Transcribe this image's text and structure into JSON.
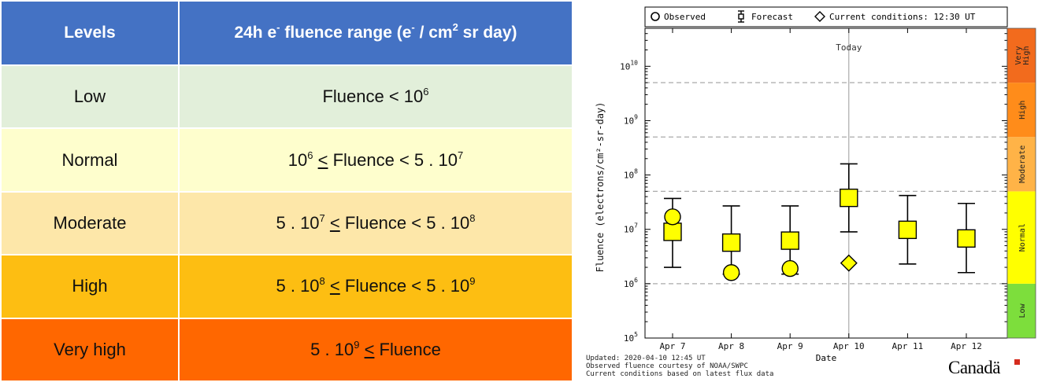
{
  "table": {
    "headers": {
      "levels": "Levels",
      "range_prefix": "24h e",
      "range_sup1": "-",
      "range_mid": " fluence range (e",
      "range_sup2": "-",
      "range_mid2": " / cm",
      "range_sup3": "2",
      "range_end": " sr day)"
    },
    "rows": [
      {
        "level": "Low",
        "color": "#e2efda",
        "r1": "Fluence < 10",
        "s1": "6",
        "r2": "",
        "u": "",
        "r3": "",
        "s2": ""
      },
      {
        "level": "Normal",
        "color": "#fefecd",
        "r1": "10",
        "s1": "6",
        "r2": " ",
        "u": "<",
        "r3": " Fluence < 5 . 10",
        "s2": "7"
      },
      {
        "level": "Moderate",
        "color": "#fde7a9",
        "r1": "5 . 10",
        "s1": "7",
        "r2": " ",
        "u": "<",
        "r3": " Fluence < 5 . 10",
        "s2": "8"
      },
      {
        "level": "High",
        "color": "#fdbe12",
        "r1": "5 . 10",
        "s1": "8",
        "r2": " ",
        "u": "<",
        "r3": " Fluence < 5 . 10",
        "s2": "9"
      },
      {
        "level": "Very high",
        "color": "#ff6700",
        "r1": "5 . 10",
        "s1": "9",
        "r2": " ",
        "u": "<",
        "r3": " Fluence",
        "s2": ""
      }
    ]
  },
  "chart_data": {
    "type": "scatter",
    "legend": {
      "observed": "Observed",
      "forecast": "Forecast",
      "current": "Current conditions: 12:30 UT",
      "placement": "top"
    },
    "ylabel": "Fluence (electrons/cm²-sr-day)",
    "xlabel": "Date",
    "yscale": "log",
    "ylim": [
      100000,
      50000000000
    ],
    "yticks": [
      {
        "v": 100000,
        "b": "10",
        "e": "5"
      },
      {
        "v": 1000000,
        "b": "10",
        "e": "6"
      },
      {
        "v": 10000000,
        "b": "10",
        "e": "7"
      },
      {
        "v": 100000000,
        "b": "10",
        "e": "8"
      },
      {
        "v": 1000000000,
        "b": "10",
        "e": "9"
      },
      {
        "v": 10000000000,
        "b": "10",
        "e": "10"
      }
    ],
    "threshold_lines": [
      1000000,
      50000000,
      500000000,
      5000000000
    ],
    "categories": [
      "Apr  7",
      "Apr  8",
      "Apr  9",
      "Apr 10",
      "Apr 11",
      "Apr 12"
    ],
    "today_label": "Today",
    "today_index": 3,
    "forecast": [
      {
        "value": 9000000,
        "low": 2000000,
        "high": 37000000
      },
      {
        "value": 5700000,
        "low": 1500000,
        "high": 27000000
      },
      {
        "value": 6200000,
        "low": 1500000,
        "high": 27000000
      },
      {
        "value": 38000000,
        "low": 9000000,
        "high": 160000000
      },
      {
        "value": 9800000,
        "low": 2300000,
        "high": 42000000
      },
      {
        "value": 6800000,
        "low": 1600000,
        "high": 30000000
      }
    ],
    "observed": [
      {
        "index": 0,
        "value": 17000000
      },
      {
        "index": 1,
        "value": 1600000
      },
      {
        "index": 2,
        "value": 1900000
      }
    ],
    "current": {
      "index": 3,
      "value": 2400000
    },
    "color_bar": [
      {
        "label": "Low",
        "from": 100000,
        "to": 1000000,
        "color": "#7dde3c"
      },
      {
        "label": "Normal",
        "from": 1000000,
        "to": 50000000,
        "color": "#ffff00"
      },
      {
        "label": "Moderate",
        "from": 50000000,
        "to": 500000000,
        "color": "#ffb347"
      },
      {
        "label": "High",
        "from": 500000000,
        "to": 5000000000,
        "color": "#ff8c1a"
      },
      {
        "label": "Very High",
        "from": 5000000000,
        "to": 50000000000,
        "color": "#f26b1d"
      }
    ],
    "marker_color": "#ffff00"
  },
  "footer": {
    "line1": "Updated: 2020-04-10 12:45 UT",
    "line2": "Observed fluence courtesy of NOAA/SWPC",
    "line3": "Current conditions based on latest flux data",
    "brand": "Canadä"
  }
}
